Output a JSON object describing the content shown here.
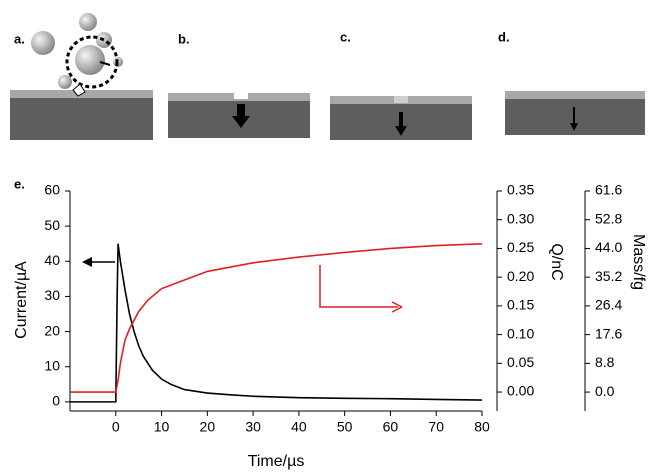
{
  "panel_labels": [
    "a.",
    "b.",
    "c.",
    "d."
  ],
  "chart_data": {
    "type": "line",
    "panel_label": "e.",
    "x_label": "Time/µs",
    "y_label": "Current/µA",
    "y2_label": "Q/nC",
    "y3_label": "Mass/fg",
    "xlim": [
      -10,
      80
    ],
    "xticks": [
      0,
      10,
      20,
      30,
      40,
      50,
      60,
      70,
      80
    ],
    "ylim": [
      -2.6,
      60
    ],
    "yticks": [
      0,
      10,
      20,
      30,
      40,
      50,
      60
    ],
    "y2lim": [
      -0.033,
      0.35
    ],
    "y2ticks": [
      {
        "value": 0,
        "label": "0.00"
      },
      {
        "value": 0.05,
        "label": "0.05"
      },
      {
        "value": 0.1,
        "label": "0.10"
      },
      {
        "value": 0.15,
        "label": "0.15"
      },
      {
        "value": 0.2,
        "label": "0.20"
      },
      {
        "value": 0.25,
        "label": "0.25"
      },
      {
        "value": 0.3,
        "label": "0.30"
      },
      {
        "value": 0.35,
        "label": "0.35"
      }
    ],
    "y3lim": [
      -5.8,
      61.6
    ],
    "y3ticks": [
      {
        "value": 0,
        "label": "0.0"
      },
      8.8,
      17.6,
      26.4,
      35.2,
      {
        "value": 44,
        "label": "44.0"
      },
      52.8,
      61.6
    ],
    "grid": false,
    "series": [
      {
        "color": "#000000",
        "axis": "y",
        "x": [
          -10,
          0,
          0.3,
          0.5,
          1,
          2,
          3,
          4,
          5,
          6,
          8,
          10,
          12,
          15,
          20,
          25,
          30,
          40,
          50,
          60,
          70,
          80
        ],
        "values": [
          0,
          0,
          30,
          45,
          40,
          32,
          25,
          20,
          16,
          13,
          9,
          6.5,
          5,
          3.5,
          2.5,
          2,
          1.6,
          1.2,
          1,
          0.9,
          0.7,
          0.5
        ]
      },
      {
        "color": "#e02020",
        "axis": "y2",
        "x": [
          -10,
          0,
          0.5,
          1,
          2,
          3,
          5,
          7,
          10,
          15,
          20,
          30,
          40,
          50,
          60,
          70,
          80
        ],
        "values": [
          0,
          0,
          0.02,
          0.05,
          0.09,
          0.11,
          0.14,
          0.16,
          0.18,
          0.195,
          0.21,
          0.225,
          0.235,
          0.243,
          0.25,
          0.255,
          0.258
        ]
      }
    ]
  }
}
